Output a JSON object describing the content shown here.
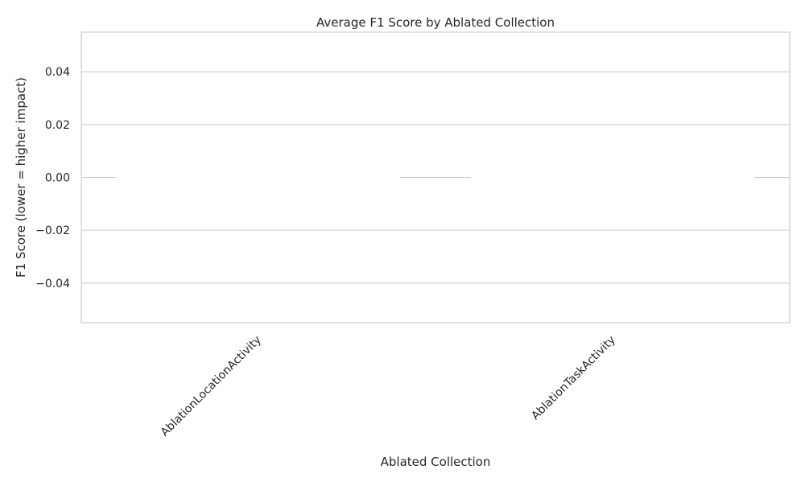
{
  "chart_data": {
    "type": "bar",
    "title": "Average F1 Score by Ablated Collection",
    "xlabel": "Ablated Collection",
    "ylabel": "F1 Score (lower = higher impact)",
    "categories": [
      "AblationLocationActivity",
      "AblationTaskActivity"
    ],
    "values": [
      0.0,
      0.0
    ],
    "ylim": [
      -0.055,
      0.055
    ],
    "yticks": [
      0.04,
      0.02,
      0.0,
      -0.02,
      -0.04
    ],
    "ytick_labels": [
      "0.04",
      "0.02",
      "0.00",
      "−0.02",
      "−0.04"
    ],
    "grid": true,
    "legend": "none",
    "colors": {
      "bar": "#ffffff",
      "grid": "#cccccc",
      "frame": "#cccccc",
      "text": "#262626"
    }
  }
}
